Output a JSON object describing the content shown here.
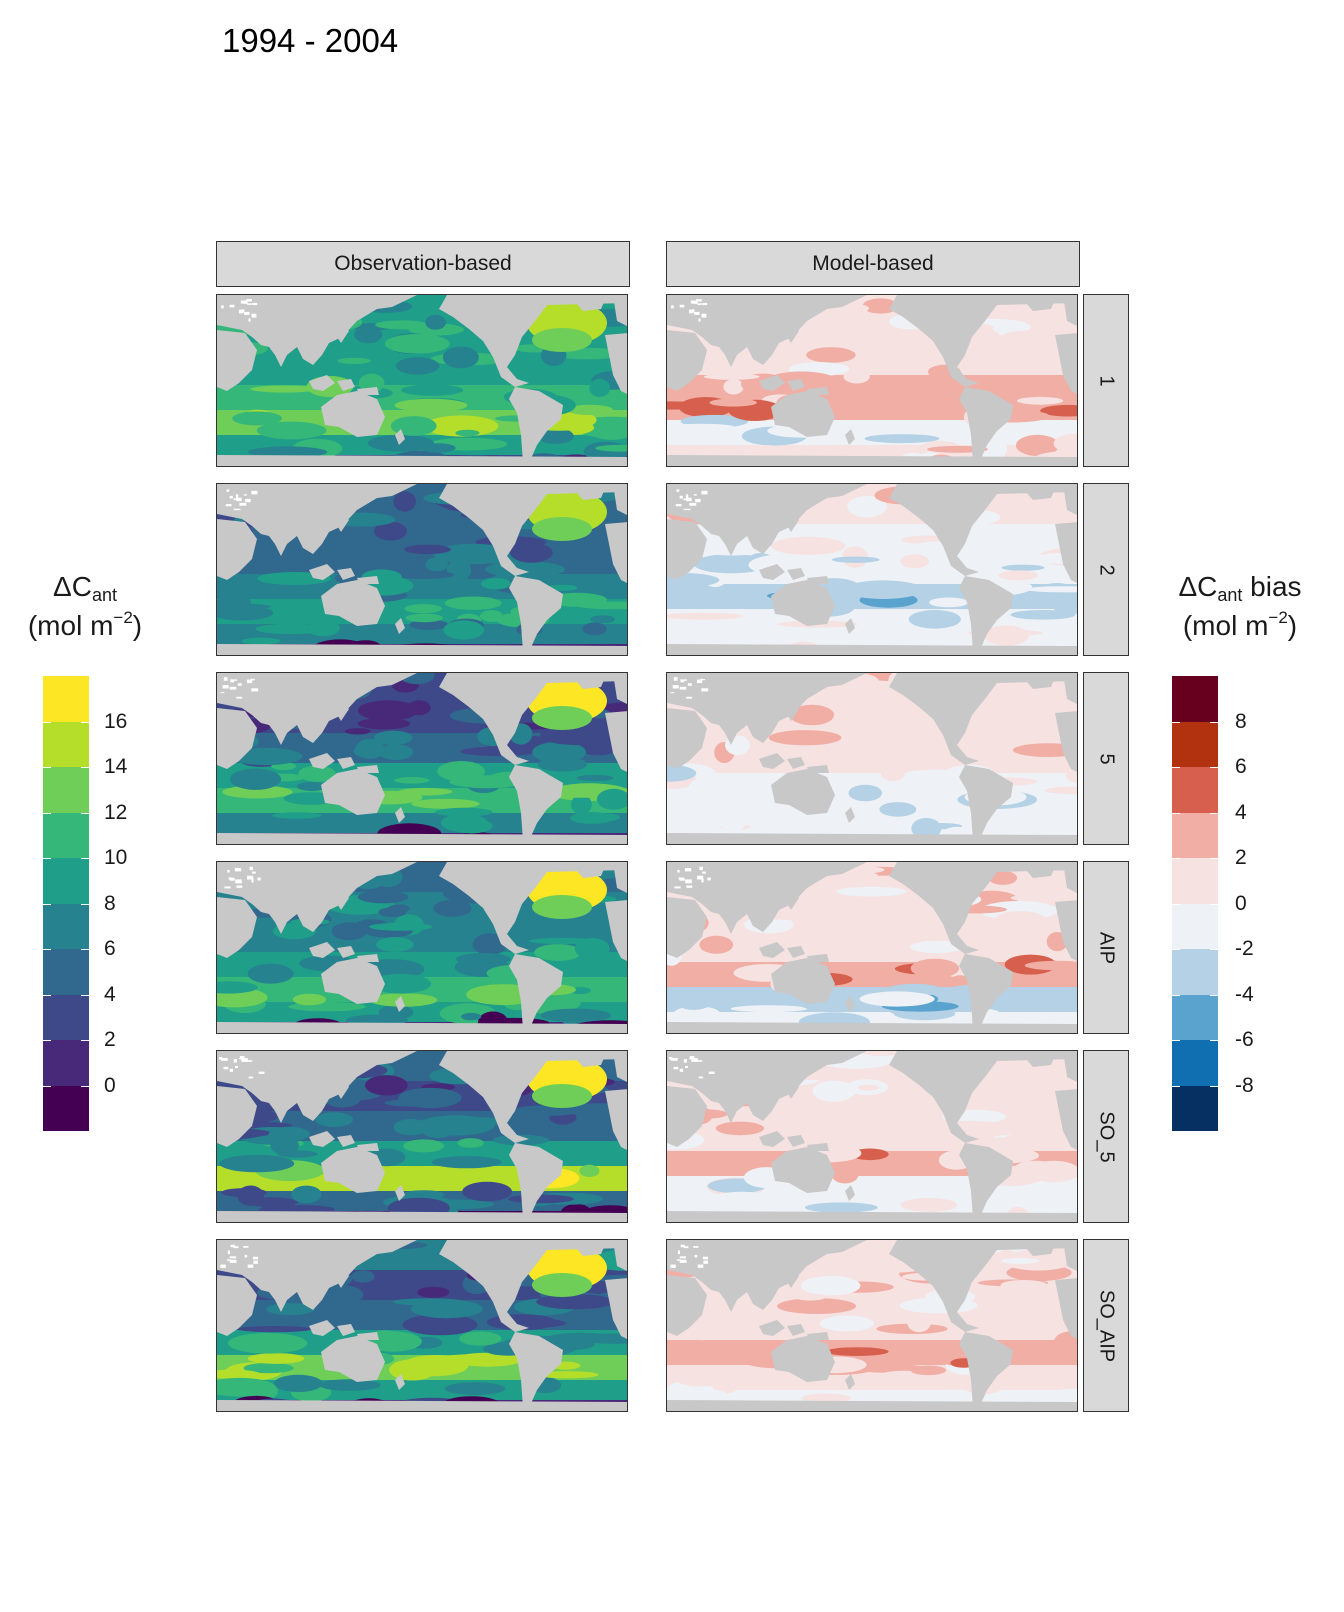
{
  "title": "1994 - 2004",
  "columns": [
    "Observation-based",
    "Model-based"
  ],
  "rows": [
    "1",
    "2",
    "5",
    "AIP",
    "SO_5",
    "SO_AIP"
  ],
  "legend_left": {
    "title_main": "ΔC",
    "title_sub": "ant",
    "unit_open": "(mol m",
    "unit_sup": "−2",
    "unit_close": ")",
    "ticks": [
      "16",
      "14",
      "12",
      "10",
      "8",
      "6",
      "4",
      "2",
      "0"
    ],
    "colors": [
      "#fde725",
      "#b5de2b",
      "#6ece58",
      "#35b779",
      "#1f9e89",
      "#26828e",
      "#31688e",
      "#3e4989",
      "#482878",
      "#440154"
    ]
  },
  "legend_right": {
    "title_main": "ΔC",
    "title_sub": "ant",
    "title_suffix": " bias",
    "unit_open": "(mol m",
    "unit_sup": "−2",
    "unit_close": ")",
    "ticks": [
      "8",
      "6",
      "4",
      "2",
      "0",
      "-2",
      "-4",
      "-6",
      "-8"
    ],
    "colors": [
      "#67001f",
      "#b2310f",
      "#d6604d",
      "#f0aea5",
      "#f7e2e2",
      "#eef2f6",
      "#b4d1e6",
      "#5aa3cf",
      "#0f6fb0",
      "#053061"
    ]
  },
  "colors": {
    "land": "#c8c8c8",
    "ocean_obs_base": "#2a788e",
    "ocean_mod_base": "#f6e6e6"
  }
}
